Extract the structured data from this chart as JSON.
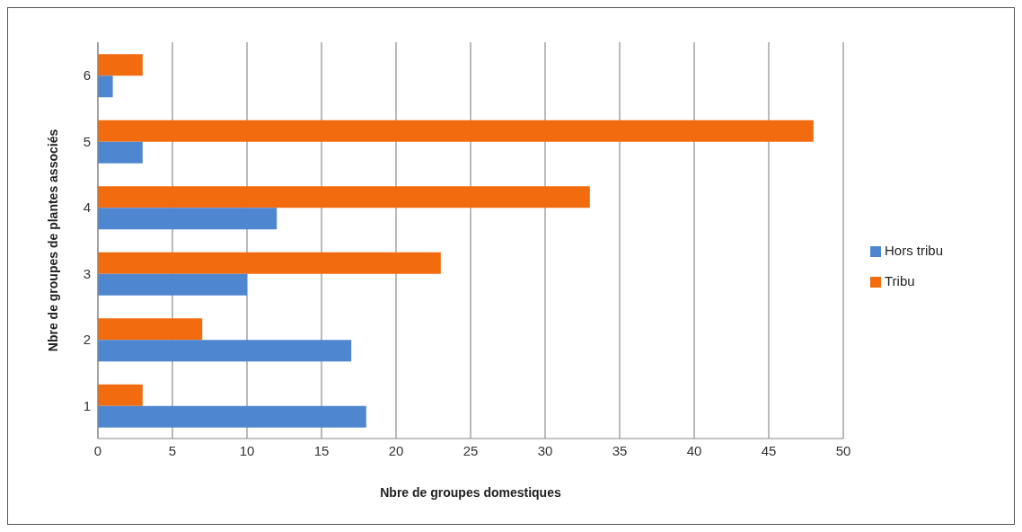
{
  "chart_data": {
    "type": "bar",
    "orientation": "horizontal",
    "xlabel": "Nbre de groupes domestiques",
    "ylabel": "Nbre de groupes de plantes associés",
    "categories": [
      "6",
      "5",
      "4",
      "3",
      "2",
      "1"
    ],
    "series": [
      {
        "name": "Tribu",
        "color": "#f26b0f",
        "values": [
          3,
          48,
          33,
          23,
          7,
          3
        ]
      },
      {
        "name": "Hors tribu",
        "color": "#4f86d0",
        "values": [
          1,
          3,
          12,
          10,
          17,
          18
        ]
      }
    ],
    "xlim": [
      0,
      50
    ],
    "xticks": [
      0,
      5,
      10,
      15,
      20,
      25,
      30,
      35,
      40,
      45,
      50
    ],
    "grid": "x",
    "legend": "right"
  }
}
